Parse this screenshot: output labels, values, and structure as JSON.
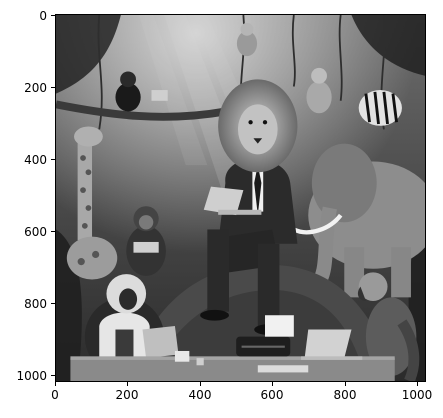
{
  "image": {
    "alt": "Grayscale scene of a lion in a suit with a laptop surrounded by jungle animals",
    "colormap": "gray"
  },
  "axes": {
    "x_ticks": [
      "0",
      "200",
      "400",
      "600",
      "800",
      "1000"
    ],
    "y_ticks": [
      "0",
      "200",
      "400",
      "600",
      "800",
      "1000"
    ]
  }
}
